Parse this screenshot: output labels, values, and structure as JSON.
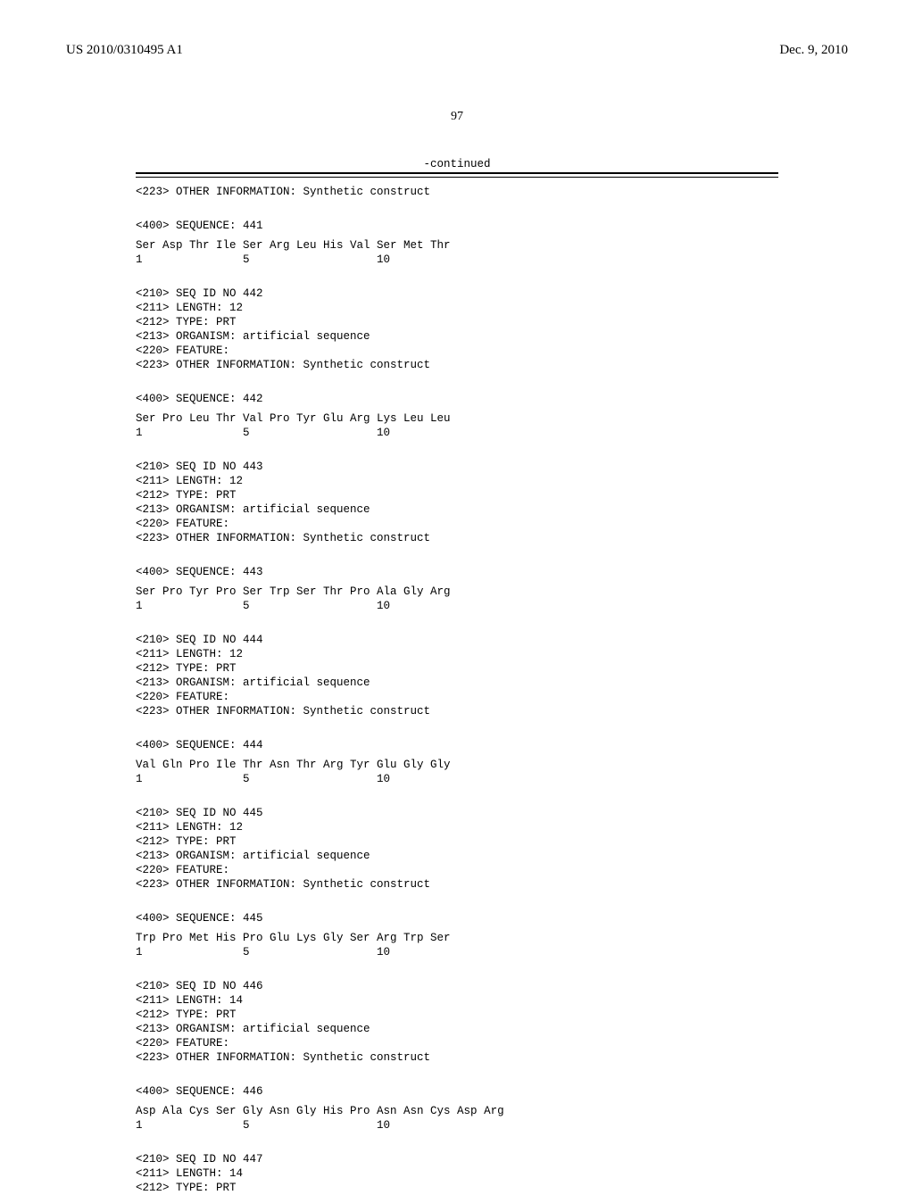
{
  "header": {
    "publication_number": "US 2010/0310495 A1",
    "publication_date": "Dec. 9, 2010"
  },
  "page_number": "97",
  "continued_label": "-continued",
  "entries": [
    {
      "pre_lines": [
        "<223> OTHER INFORMATION: Synthetic construct"
      ],
      "seq_label": "<400> SEQUENCE: 441",
      "aa": "Ser Asp Thr Ile Ser Arg Leu His Val Ser Met Thr",
      "pos": "1               5                   10"
    },
    {
      "pre_lines": [
        "<210> SEQ ID NO 442",
        "<211> LENGTH: 12",
        "<212> TYPE: PRT",
        "<213> ORGANISM: artificial sequence",
        "<220> FEATURE:",
        "<223> OTHER INFORMATION: Synthetic construct"
      ],
      "seq_label": "<400> SEQUENCE: 442",
      "aa": "Ser Pro Leu Thr Val Pro Tyr Glu Arg Lys Leu Leu",
      "pos": "1               5                   10"
    },
    {
      "pre_lines": [
        "<210> SEQ ID NO 443",
        "<211> LENGTH: 12",
        "<212> TYPE: PRT",
        "<213> ORGANISM: artificial sequence",
        "<220> FEATURE:",
        "<223> OTHER INFORMATION: Synthetic construct"
      ],
      "seq_label": "<400> SEQUENCE: 443",
      "aa": "Ser Pro Tyr Pro Ser Trp Ser Thr Pro Ala Gly Arg",
      "pos": "1               5                   10"
    },
    {
      "pre_lines": [
        "<210> SEQ ID NO 444",
        "<211> LENGTH: 12",
        "<212> TYPE: PRT",
        "<213> ORGANISM: artificial sequence",
        "<220> FEATURE:",
        "<223> OTHER INFORMATION: Synthetic construct"
      ],
      "seq_label": "<400> SEQUENCE: 444",
      "aa": "Val Gln Pro Ile Thr Asn Thr Arg Tyr Glu Gly Gly",
      "pos": "1               5                   10"
    },
    {
      "pre_lines": [
        "<210> SEQ ID NO 445",
        "<211> LENGTH: 12",
        "<212> TYPE: PRT",
        "<213> ORGANISM: artificial sequence",
        "<220> FEATURE:",
        "<223> OTHER INFORMATION: Synthetic construct"
      ],
      "seq_label": "<400> SEQUENCE: 445",
      "aa": "Trp Pro Met His Pro Glu Lys Gly Ser Arg Trp Ser",
      "pos": "1               5                   10"
    },
    {
      "pre_lines": [
        "<210> SEQ ID NO 446",
        "<211> LENGTH: 14",
        "<212> TYPE: PRT",
        "<213> ORGANISM: artificial sequence",
        "<220> FEATURE:",
        "<223> OTHER INFORMATION: Synthetic construct"
      ],
      "seq_label": "<400> SEQUENCE: 446",
      "aa": "Asp Ala Cys Ser Gly Asn Gly His Pro Asn Asn Cys Asp Arg",
      "pos": "1               5                   10"
    },
    {
      "pre_lines": [
        "<210> SEQ ID NO 447",
        "<211> LENGTH: 14",
        "<212> TYPE: PRT"
      ],
      "seq_label": "",
      "aa": "",
      "pos": ""
    }
  ]
}
